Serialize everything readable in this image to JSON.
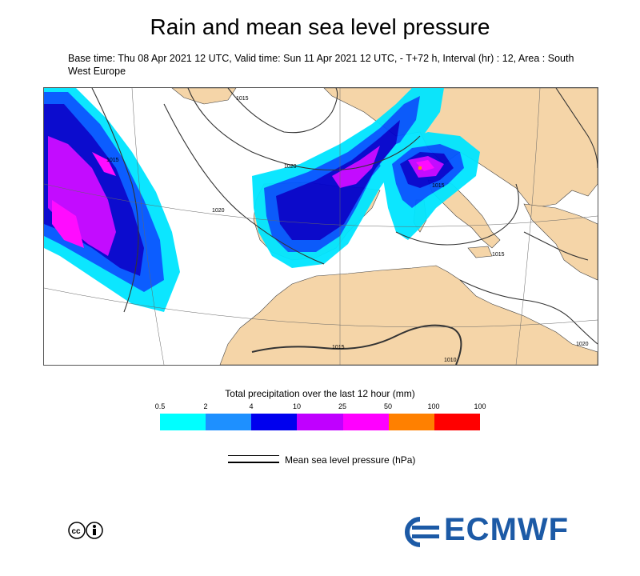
{
  "title": "Rain and mean sea level pressure",
  "subtitle": "Base time: Thu 08 Apr 2021 12 UTC, Valid time: Sun 11 Apr 2021 12 UTC, - T+72 h, Interval (hr) : 12, Area : South West Europe",
  "map": {
    "isobar_labels": [
      "1015",
      "1015",
      "1020",
      "1020",
      "1015",
      "1015",
      "1010",
      "1015",
      "1020"
    ]
  },
  "legend": {
    "title": "Total precipitation over the last 12 hour (mm)",
    "ticks": [
      "0.5",
      "2",
      "4",
      "10",
      "25",
      "50",
      "100",
      "100"
    ],
    "colors": [
      "#00ffff",
      "#1e90ff",
      "#0000ee",
      "#c000ff",
      "#ff00ff",
      "#ff8000",
      "#ff0000"
    ],
    "mslp_label": "Mean sea level pressure (hPa)"
  },
  "colors": {
    "land": "#f5d5a8",
    "sea": "#ffffff",
    "precip_light": "#00e5ff",
    "precip_blue": "#0055ff",
    "precip_dark": "#0000cc",
    "precip_purple": "#c000ff",
    "precip_magenta": "#ff00ff",
    "brand": "#1c5aa6"
  },
  "logo": {
    "text": "ECMWF",
    "license_icon": "cc-by-icon"
  }
}
